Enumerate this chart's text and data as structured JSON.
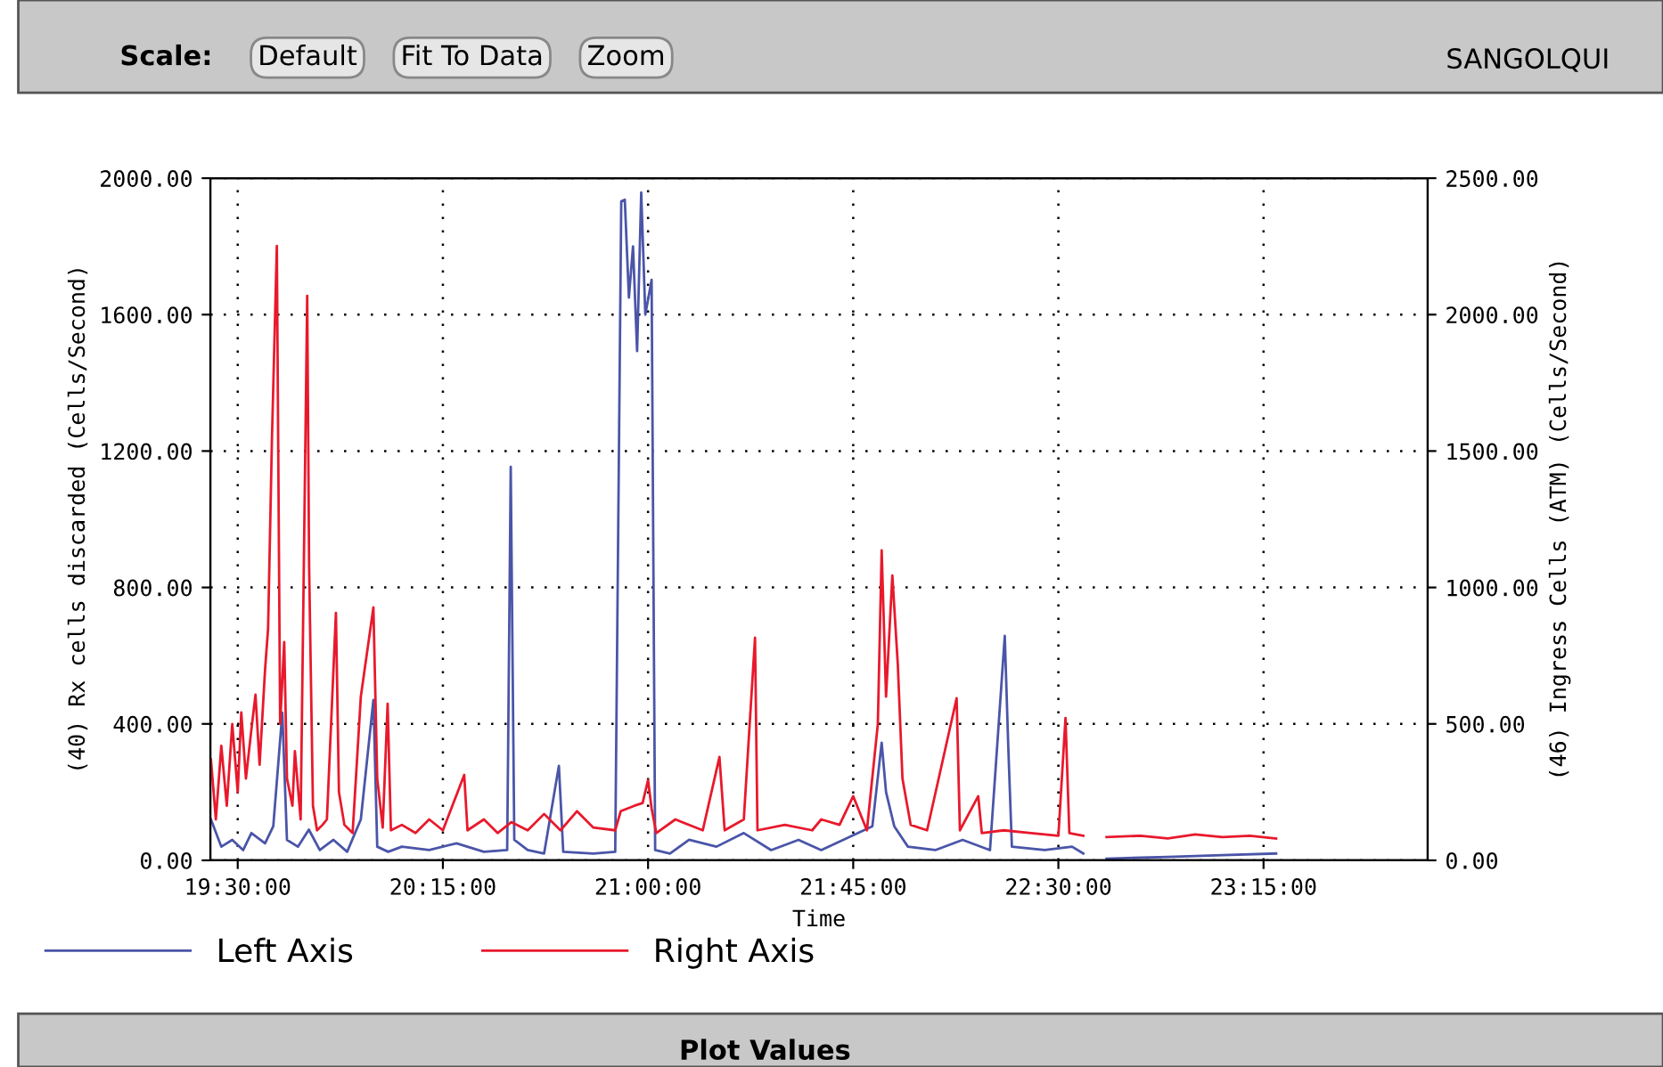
{
  "chart_data": {
    "type": "line",
    "title": "SANGOLQUI",
    "xlabel": "Time",
    "ylabel": "(40) Rx cells discarded (Cells/Second)",
    "y2label": "(46) Ingress Cells (ATM) (Cells/Second)",
    "annotations": [
      "Scale:",
      "Default",
      "Fit To Data",
      "Zoom",
      "Plot Values"
    ],
    "xlim": [
      19.4,
      23.85
    ],
    "xticks": [
      {
        "value": 19.5,
        "label": "19:30:00"
      },
      {
        "value": 20.25,
        "label": "20:15:00"
      },
      {
        "value": 21.0,
        "label": "21:00:00"
      },
      {
        "value": 21.75,
        "label": "21:45:00"
      },
      {
        "value": 22.5,
        "label": "22:30:00"
      },
      {
        "value": 23.25,
        "label": "23:15:00"
      }
    ],
    "ylim": [
      0,
      2000
    ],
    "yticks": [
      {
        "value": 0,
        "label": "0.00"
      },
      {
        "value": 400,
        "label": "400.00"
      },
      {
        "value": 800,
        "label": "800.00"
      },
      {
        "value": 1200,
        "label": "1200.00"
      },
      {
        "value": 1600,
        "label": "1600.00"
      },
      {
        "value": 2000,
        "label": "2000.00"
      }
    ],
    "y2lim": [
      0,
      2500
    ],
    "y2ticks": [
      {
        "value": 0,
        "label": "0.00"
      },
      {
        "value": 500,
        "label": "500.00"
      },
      {
        "value": 1000,
        "label": "1000.00"
      },
      {
        "value": 1500,
        "label": "1500.00"
      },
      {
        "value": 2000,
        "label": "2000.00"
      },
      {
        "value": 2500,
        "label": "2500.00"
      }
    ],
    "grid": true,
    "legend": "bottom left",
    "line_style": "solid",
    "series": [
      {
        "name": "Left Axis",
        "color": "#4a55a8",
        "x": [
          19.402,
          19.44,
          19.48,
          19.52,
          19.55,
          19.6,
          19.63,
          19.663,
          19.68,
          19.72,
          19.76,
          19.8,
          19.85,
          19.9,
          19.95,
          19.996,
          20.01,
          20.05,
          20.1,
          20.2,
          20.3,
          20.4,
          20.485,
          20.498,
          20.511,
          20.56,
          20.62,
          20.674,
          20.69,
          20.8,
          20.88,
          20.902,
          20.915,
          20.93,
          20.945,
          20.96,
          20.975,
          20.99,
          21.013,
          21.026,
          21.08,
          21.15,
          21.25,
          21.35,
          21.45,
          21.55,
          21.633,
          21.82,
          21.854,
          21.87,
          21.9,
          21.95,
          22.05,
          22.15,
          22.25,
          22.304,
          22.317,
          22.33,
          22.45,
          22.55,
          22.591,
          22.63,
          22.676,
          22.9,
          23.1,
          23.296
        ],
        "values": [
          120,
          40,
          60,
          30,
          80,
          50,
          100,
          433,
          60,
          40,
          90,
          30,
          60,
          25,
          120,
          470,
          40,
          25,
          40,
          30,
          50,
          25,
          30,
          1154,
          60,
          30,
          20,
          277,
          25,
          20,
          25,
          1932,
          1937,
          1650,
          1800,
          1493,
          1958,
          1600,
          1702,
          30,
          20,
          60,
          40,
          80,
          30,
          60,
          30,
          100,
          345,
          200,
          100,
          40,
          30,
          60,
          30,
          658,
          329,
          40,
          30,
          40,
          20,
          null,
          5,
          10,
          15,
          20
        ]
      },
      {
        "name": "Right Axis",
        "color": "#e8192c",
        "axis": "y2",
        "x": [
          19.402,
          19.42,
          19.44,
          19.46,
          19.48,
          19.5,
          19.513,
          19.53,
          19.55,
          19.565,
          19.58,
          19.6,
          19.611,
          19.625,
          19.643,
          19.655,
          19.67,
          19.68,
          19.7,
          19.709,
          19.73,
          19.754,
          19.761,
          19.775,
          19.79,
          19.81,
          19.826,
          19.859,
          19.87,
          19.89,
          19.92,
          19.95,
          19.996,
          20.01,
          20.03,
          20.048,
          20.06,
          20.1,
          20.15,
          20.2,
          20.25,
          20.328,
          20.34,
          20.4,
          20.45,
          20.5,
          20.56,
          20.62,
          20.68,
          20.74,
          20.8,
          20.88,
          20.9,
          20.95,
          20.98,
          21.0,
          21.013,
          21.03,
          21.1,
          21.2,
          21.261,
          21.28,
          21.35,
          21.391,
          21.4,
          21.5,
          21.6,
          21.633,
          21.7,
          21.75,
          21.8,
          21.84,
          21.854,
          21.87,
          21.893,
          21.913,
          21.93,
          21.96,
          22.02,
          22.128,
          22.14,
          22.207,
          22.22,
          22.3,
          22.4,
          22.5,
          22.526,
          22.54,
          22.591,
          22.63,
          22.676,
          22.8,
          22.9,
          23.0,
          23.1,
          23.2,
          23.296
        ],
        "values": [
          370,
          150,
          420,
          200,
          500,
          250,
          542,
          300,
          480,
          607,
          350,
          700,
          850,
          1540,
          2252,
          500,
          800,
          300,
          200,
          400,
          150,
          2069,
          1077,
          200,
          110,
          130,
          150,
          907,
          250,
          130,
          100,
          600,
          927,
          300,
          120,
          574,
          110,
          130,
          100,
          150,
          110,
          313,
          110,
          150,
          100,
          140,
          110,
          170,
          110,
          180,
          120,
          110,
          180,
          200,
          210,
          294,
          190,
          100,
          150,
          110,
          379,
          110,
          150,
          816,
          110,
          130,
          110,
          150,
          130,
          235,
          110,
          500,
          1136,
          600,
          1044,
          718,
          300,
          130,
          110,
          594,
          110,
          235,
          100,
          110,
          100,
          90,
          522,
          100,
          90,
          null,
          85,
          90,
          80,
          95,
          85,
          90,
          80
        ]
      }
    ]
  }
}
